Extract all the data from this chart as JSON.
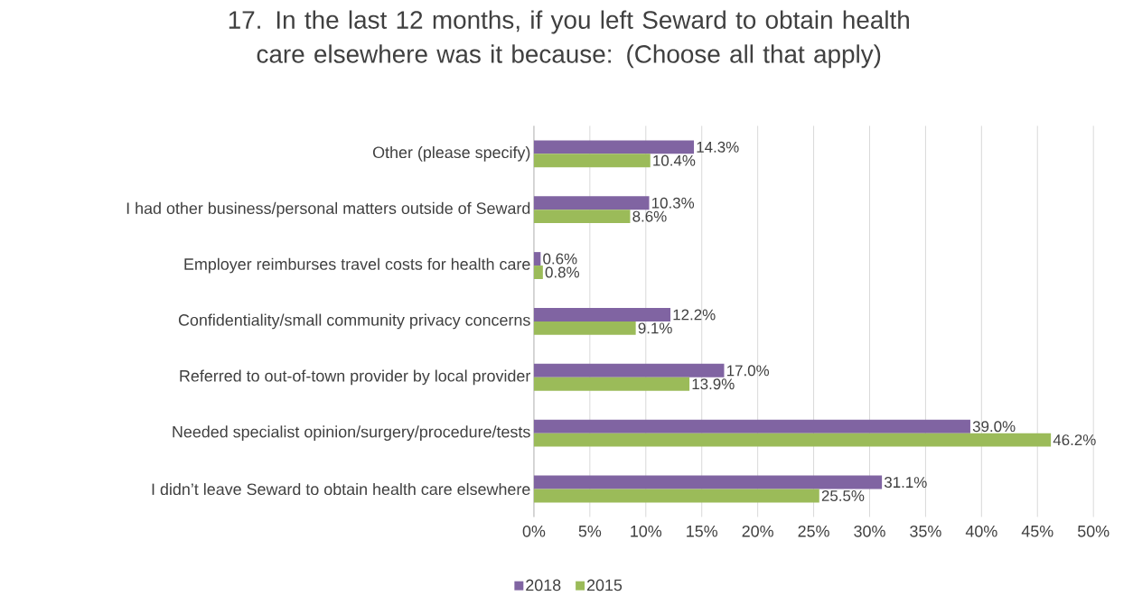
{
  "chart_data": {
    "type": "bar",
    "orientation": "horizontal",
    "title": "17. In the last 12 months, if you left Seward to obtain health care elsewhere was it because: (Choose all that apply)",
    "categories": [
      "Other (please specify)",
      "I had other business/personal matters outside of Seward",
      "Employer reimburses travel costs for health care",
      "Confidentiality/small community privacy concerns",
      "Referred to out-of-town provider by local provider",
      "Needed specialist opinion/surgery/procedure/tests",
      "I didn’t leave Seward to obtain health care elsewhere"
    ],
    "series": [
      {
        "name": "2018",
        "color": "#8064a2",
        "values": [
          14.3,
          10.3,
          0.6,
          12.2,
          17.0,
          39.0,
          31.1
        ],
        "value_labels": [
          "14.3%",
          "10.3%",
          "0.6%",
          "12.2%",
          "17.0%",
          "39.0%",
          "31.1%"
        ]
      },
      {
        "name": "2015",
        "color": "#9bbb59",
        "values": [
          10.4,
          8.6,
          0.8,
          9.1,
          13.9,
          46.2,
          25.5
        ],
        "value_labels": [
          "10.4%",
          "8.6%",
          "0.8%",
          "9.1%",
          "13.9%",
          "46.2%",
          "25.5%"
        ]
      }
    ],
    "xlim": [
      0,
      50
    ],
    "xticks": [
      {
        "value": 0,
        "label": "0%"
      },
      {
        "value": 5,
        "label": "5%"
      },
      {
        "value": 10,
        "label": "10%"
      },
      {
        "value": 15,
        "label": "15%"
      },
      {
        "value": 20,
        "label": "20%"
      },
      {
        "value": 25,
        "label": "25%"
      },
      {
        "value": 30,
        "label": "30%"
      },
      {
        "value": 35,
        "label": "35%"
      },
      {
        "value": 40,
        "label": "40%"
      },
      {
        "value": 45,
        "label": "45%"
      },
      {
        "value": 50,
        "label": "50%"
      }
    ],
    "grid": "x",
    "legend": "bottom"
  }
}
